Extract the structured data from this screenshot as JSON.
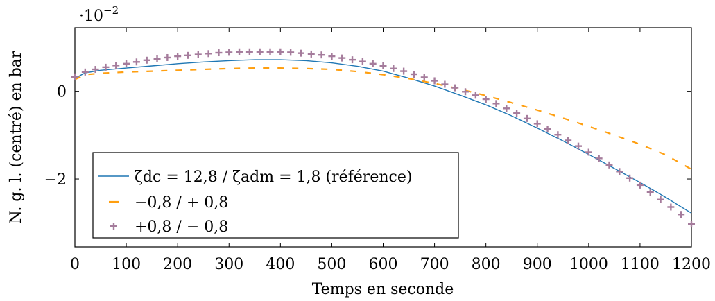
{
  "chart_data": {
    "type": "line",
    "xlabel": "Temps en seconde",
    "ylabel": "N. g. l. (centré) en bar",
    "y_multiplier": "·10−2",
    "xlim": [
      0,
      1200
    ],
    "ylim": [
      -3.55,
      1.45
    ],
    "x_ticks": [
      0,
      100,
      200,
      300,
      400,
      500,
      600,
      700,
      800,
      900,
      1000,
      1100,
      1200
    ],
    "y_ticks": [
      0,
      -2
    ],
    "grid": false,
    "legend_position": "bottom-left",
    "series": [
      {
        "name": "ζdc = 12,8 / ζadm = 1,8 (référence)",
        "style": "solid",
        "color": "#1f77b4",
        "x": [
          0,
          20,
          50,
          100,
          150,
          200,
          250,
          300,
          350,
          400,
          450,
          500,
          550,
          600,
          650,
          700,
          750,
          800,
          850,
          900,
          950,
          1000,
          1050,
          1100,
          1150,
          1200
        ],
        "y": [
          0.3,
          0.42,
          0.48,
          0.53,
          0.58,
          0.63,
          0.67,
          0.7,
          0.72,
          0.72,
          0.7,
          0.65,
          0.57,
          0.46,
          0.3,
          0.12,
          -0.09,
          -0.31,
          -0.56,
          -0.84,
          -1.13,
          -1.44,
          -1.76,
          -2.08,
          -2.42,
          -2.78
        ]
      },
      {
        "name": "−0,8 / + 0,8",
        "style": "dashed",
        "color": "#ff9f10",
        "x": [
          0,
          20,
          50,
          100,
          150,
          200,
          250,
          300,
          350,
          400,
          450,
          500,
          550,
          600,
          650,
          700,
          750,
          800,
          850,
          900,
          950,
          1000,
          1050,
          1100,
          1150,
          1200
        ],
        "y": [
          0.27,
          0.38,
          0.41,
          0.44,
          0.46,
          0.48,
          0.5,
          0.52,
          0.53,
          0.53,
          0.52,
          0.5,
          0.45,
          0.38,
          0.29,
          0.18,
          0.05,
          -0.1,
          -0.26,
          -0.43,
          -0.61,
          -0.8,
          -1.0,
          -1.21,
          -1.45,
          -1.78
        ]
      },
      {
        "name": "+0,8 / − 0,8",
        "style": "plus-markers",
        "color": "#a57c9c",
        "x": [
          0,
          20,
          40,
          60,
          80,
          100,
          120,
          140,
          160,
          180,
          200,
          220,
          240,
          260,
          280,
          300,
          320,
          340,
          360,
          380,
          400,
          420,
          440,
          460,
          480,
          500,
          520,
          540,
          560,
          580,
          600,
          620,
          640,
          660,
          680,
          700,
          720,
          740,
          760,
          780,
          800,
          820,
          840,
          860,
          880,
          900,
          920,
          940,
          960,
          980,
          1000,
          1020,
          1040,
          1060,
          1080,
          1100,
          1120,
          1140,
          1160,
          1180,
          1200
        ],
        "y": [
          0.33,
          0.44,
          0.5,
          0.55,
          0.59,
          0.63,
          0.67,
          0.71,
          0.74,
          0.77,
          0.8,
          0.82,
          0.84,
          0.86,
          0.88,
          0.89,
          0.9,
          0.9,
          0.9,
          0.9,
          0.9,
          0.89,
          0.87,
          0.85,
          0.83,
          0.8,
          0.76,
          0.72,
          0.68,
          0.63,
          0.58,
          0.52,
          0.46,
          0.39,
          0.32,
          0.24,
          0.16,
          0.08,
          -0.01,
          -0.09,
          -0.18,
          -0.28,
          -0.39,
          -0.5,
          -0.62,
          -0.74,
          -0.86,
          -0.99,
          -1.12,
          -1.25,
          -1.39,
          -1.53,
          -1.68,
          -1.83,
          -1.98,
          -2.14,
          -2.3,
          -2.47,
          -2.64,
          -2.81,
          -3.03
        ]
      }
    ]
  }
}
